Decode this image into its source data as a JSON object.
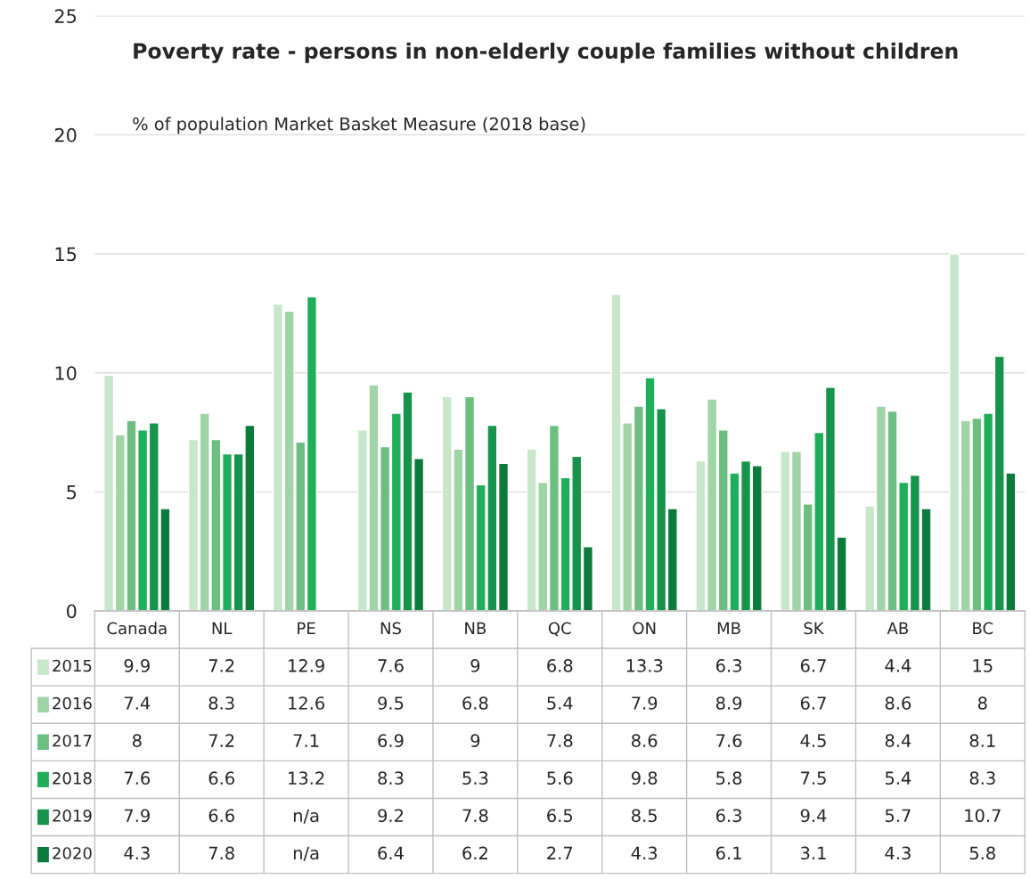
{
  "chart_data": {
    "type": "bar",
    "title": "Poverty rate - persons in non-elderly couple families without children",
    "subtitle": "% of population Market Basket Measure (2018 base)",
    "categories": [
      "Canada",
      "NL",
      "PE",
      "NS",
      "NB",
      "QC",
      "ON",
      "MB",
      "SK",
      "AB",
      "BC"
    ],
    "series": [
      {
        "name": "2015",
        "color": "#c8e6c9",
        "values": [
          9.9,
          7.2,
          12.9,
          7.6,
          9,
          6.8,
          13.3,
          6.3,
          6.7,
          4.4,
          15
        ],
        "value_labels": [
          "9.9",
          "7.2",
          "12.9",
          "7.6",
          "9",
          "6.8",
          "13.3",
          "6.3",
          "6.7",
          "4.4",
          "15"
        ]
      },
      {
        "name": "2016",
        "color": "#9fd4a6",
        "values": [
          7.4,
          8.3,
          12.6,
          9.5,
          6.8,
          5.4,
          7.9,
          8.9,
          6.7,
          8.6,
          8
        ],
        "value_labels": [
          "7.4",
          "8.3",
          "12.6",
          "9.5",
          "6.8",
          "5.4",
          "7.9",
          "8.9",
          "6.7",
          "8.6",
          "8"
        ]
      },
      {
        "name": "2017",
        "color": "#6cbf80",
        "values": [
          8,
          7.2,
          7.1,
          6.9,
          9,
          7.8,
          8.6,
          7.6,
          4.5,
          8.4,
          8.1
        ],
        "value_labels": [
          "8",
          "7.2",
          "7.1",
          "6.9",
          "9",
          "7.8",
          "8.6",
          "7.6",
          "4.5",
          "8.4",
          "8.1"
        ]
      },
      {
        "name": "2018",
        "color": "#1fae5a",
        "values": [
          7.6,
          6.6,
          13.2,
          8.3,
          5.3,
          5.6,
          9.8,
          5.8,
          7.5,
          5.4,
          8.3
        ],
        "value_labels": [
          "7.6",
          "6.6",
          "13.2",
          "8.3",
          "5.3",
          "5.6",
          "9.8",
          "5.8",
          "7.5",
          "5.4",
          "8.3"
        ]
      },
      {
        "name": "2019",
        "color": "#17944b",
        "values": [
          7.9,
          6.6,
          null,
          9.2,
          7.8,
          6.5,
          8.5,
          6.3,
          9.4,
          5.7,
          10.7
        ],
        "value_labels": [
          "7.9",
          "6.6",
          "n/a",
          "9.2",
          "7.8",
          "6.5",
          "8.5",
          "6.3",
          "9.4",
          "5.7",
          "10.7"
        ]
      },
      {
        "name": "2020",
        "color": "#0b7a3a",
        "values": [
          4.3,
          7.8,
          null,
          6.4,
          6.2,
          2.7,
          4.3,
          6.1,
          3.1,
          4.3,
          5.8
        ],
        "value_labels": [
          "4.3",
          "7.8",
          "n/a",
          "6.4",
          "6.2",
          "2.7",
          "4.3",
          "6.1",
          "3.1",
          "4.3",
          "5.8"
        ]
      }
    ],
    "ylim": [
      0,
      25
    ],
    "yticks": [
      0,
      5,
      10,
      15,
      20,
      25
    ],
    "grid": "y",
    "legend": "bottom"
  }
}
